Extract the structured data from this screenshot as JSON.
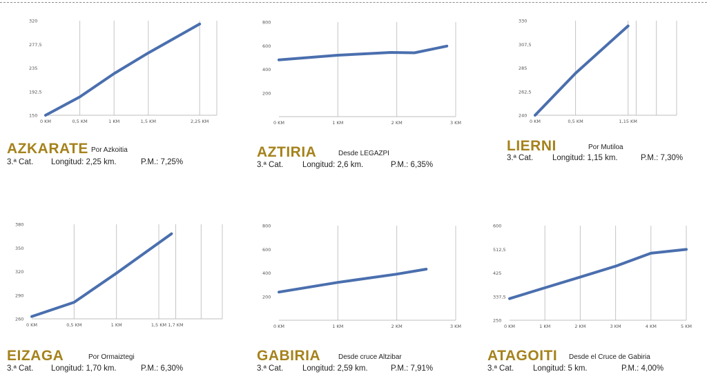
{
  "chart_data": [
    {
      "type": "line",
      "title": "AZKARATE",
      "subtitle": "Por Azkoitia",
      "category": "3.ª Cat.",
      "length": "Longitud: 2,25 km.",
      "gradient": "P.M.: 7,25%",
      "xmax": 2.5,
      "x_ticks": [
        0,
        0.5,
        1,
        1.5,
        2.25
      ],
      "x_tick_labels": [
        "0 KM",
        "0,5 KM",
        "1 KM",
        "1,5 KM",
        "2,25 KM"
      ],
      "extra_gridlines": [
        2.5
      ],
      "ylim": [
        150,
        320
      ],
      "y_ticks": [
        150,
        192.5,
        235,
        277.5,
        320
      ],
      "y_tick_labels": [
        "150",
        "192,5",
        "235",
        "277,5",
        "320"
      ],
      "points": [
        [
          0,
          150
        ],
        [
          0.5,
          183
        ],
        [
          1,
          225
        ],
        [
          1.5,
          262
        ],
        [
          2.25,
          314
        ]
      ]
    },
    {
      "type": "line",
      "title": "AZTIRIA",
      "subtitle": "Desde LEGAZPI",
      "category": "3.ª Cat.",
      "length": "Longitud: 2,6 km.",
      "gradient": "P.M.: 6,35%",
      "xmax": 3,
      "x_ticks": [
        0,
        1,
        2,
        3
      ],
      "x_tick_labels": [
        "0 KM",
        "1 KM",
        "2 KM",
        "3 KM"
      ],
      "extra_gridlines": [],
      "ylim": [
        0,
        800
      ],
      "y_ticks": [
        200,
        400,
        600,
        800
      ],
      "y_tick_labels": [
        "200",
        "400",
        "600",
        "800"
      ],
      "points": [
        [
          0,
          480
        ],
        [
          1,
          520
        ],
        [
          1.9,
          543
        ],
        [
          2.3,
          540
        ],
        [
          2.85,
          597
        ]
      ]
    },
    {
      "type": "line",
      "title": "LIERNI",
      "subtitle": "Por Mutiloa",
      "category": "3.ª Cat.",
      "length": "Longitud: 1,15 km.",
      "gradient": "P.M.: 7,30%",
      "xmax": 1.75,
      "x_ticks": [
        0,
        0.5,
        1.15
      ],
      "x_tick_labels": [
        "0 KM",
        "0,5 KM",
        "1,15 KM"
      ],
      "extra_gridlines": [
        1.25,
        1.5
      ],
      "ylim": [
        240,
        330
      ],
      "y_ticks": [
        240,
        262.5,
        285,
        307.5,
        330
      ],
      "y_tick_labels": [
        "240",
        "262,5",
        "285",
        "307,5",
        "330"
      ],
      "points": [
        [
          0,
          240
        ],
        [
          0.5,
          280
        ],
        [
          1.15,
          325
        ]
      ]
    },
    {
      "type": "line",
      "title": "EIZAGA",
      "subtitle": "Por Ormaiztegi",
      "category": "3.ª Cat.",
      "length": "Longitud: 1,70 km.",
      "gradient": "P.M.: 6,30%",
      "xmax": 2.25,
      "x_ticks": [
        0,
        0.5,
        1,
        1.5,
        1.7
      ],
      "x_tick_labels": [
        "0 KM",
        "0,5 KM",
        "1 KM",
        "1,5 KM",
        "1,7 KM"
      ],
      "extra_gridlines": [
        2
      ],
      "ylim": [
        260,
        380
      ],
      "y_ticks": [
        260,
        290,
        320,
        350,
        380
      ],
      "y_tick_labels": [
        "260",
        "290",
        "320",
        "350",
        "380"
      ],
      "points": [
        [
          0,
          263
        ],
        [
          0.5,
          281
        ],
        [
          1,
          318
        ],
        [
          1.65,
          368
        ]
      ]
    },
    {
      "type": "line",
      "title": "GABIRIA",
      "subtitle": "Desde cruce Altzibar",
      "category": "3.ª Cat.",
      "length": "Longitud: 2,59 km.",
      "gradient": "P.M.: 7,91%",
      "xmax": 3,
      "x_ticks": [
        0,
        1,
        2,
        3
      ],
      "x_tick_labels": [
        "0 KM",
        "1 KM",
        "2 KM",
        "3 KM"
      ],
      "extra_gridlines": [],
      "ylim": [
        0,
        800
      ],
      "y_ticks": [
        200,
        400,
        600,
        800
      ],
      "y_tick_labels": [
        "200",
        "400",
        "600",
        "800"
      ],
      "points": [
        [
          0,
          238
        ],
        [
          1,
          320
        ],
        [
          2,
          390
        ],
        [
          2.5,
          432
        ]
      ]
    },
    {
      "type": "line",
      "title": "ATAGOITI",
      "subtitle": "Desde el Cruce de Gabiria",
      "category": "3.ª Cat.",
      "length": "Longitud: 5 km.",
      "gradient": "P.M.: 4,00%",
      "xmax": 5,
      "x_ticks": [
        0,
        1,
        2,
        3,
        4,
        5
      ],
      "x_tick_labels": [
        "0 KM",
        "1 KM",
        "2 KM",
        "3 KM",
        "4 KM",
        "5 KM"
      ],
      "extra_gridlines": [],
      "ylim": [
        250,
        600
      ],
      "y_ticks": [
        250,
        337.5,
        425,
        512.5,
        600
      ],
      "y_tick_labels": [
        "250",
        "337,5",
        "425",
        "512,5",
        "600"
      ],
      "points": [
        [
          0,
          330
        ],
        [
          1,
          370
        ],
        [
          2,
          410
        ],
        [
          3,
          450
        ],
        [
          4,
          498
        ],
        [
          5,
          512
        ]
      ]
    }
  ]
}
